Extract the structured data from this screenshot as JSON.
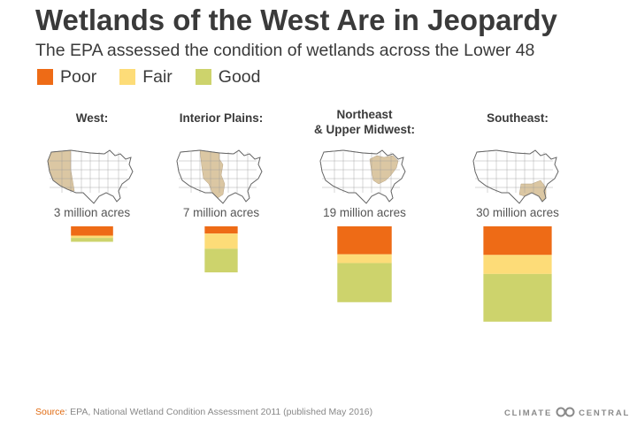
{
  "header": {
    "title": "Wetlands of the West Are in Jeopardy",
    "subtitle": "The EPA assessed the condition of wetlands across the Lower 48"
  },
  "legend": [
    {
      "label": "Poor",
      "color": "#ee6b16"
    },
    {
      "label": "Fair",
      "color": "#fddc78"
    },
    {
      "label": "Good",
      "color": "#cdd36c"
    }
  ],
  "chart_data": {
    "type": "bar",
    "title": "Wetlands of the West Are in Jeopardy",
    "subtitle": "The EPA assessed the condition of wetlands across the Lower 48",
    "value_unit": "million acres",
    "stack_order": [
      "Poor",
      "Fair",
      "Good"
    ],
    "series_colors": {
      "Poor": "#ee6b16",
      "Fair": "#fddc78",
      "Good": "#cdd36c"
    },
    "regions": [
      {
        "name": "West:",
        "name_lines": [
          "West:"
        ],
        "total_label": "3 million acres",
        "total": 3,
        "values": {
          "Poor": 1.8,
          "Fair": 0.45,
          "Good": 0.75
        },
        "map_highlight": "west"
      },
      {
        "name": "Interior Plains:",
        "name_lines": [
          "Interior Plains:"
        ],
        "total_label": "7 million acres",
        "total": 7,
        "values": {
          "Poor": 1.1,
          "Fair": 2.3,
          "Good": 3.6
        },
        "map_highlight": "plains"
      },
      {
        "name": "Northeast & Upper Midwest:",
        "name_lines": [
          "Northeast",
          "& Upper Midwest:"
        ],
        "total_label": "19 million acres",
        "total": 19,
        "values": {
          "Poor": 7.0,
          "Fair": 2.2,
          "Good": 9.8
        },
        "map_highlight": "northeast"
      },
      {
        "name": "Southeast:",
        "name_lines": [
          "Southeast:"
        ],
        "total_label": "30 million acres",
        "total": 30,
        "values": {
          "Poor": 9.0,
          "Fair": 6.0,
          "Good": 15.0
        },
        "map_highlight": "southeast"
      }
    ]
  },
  "footer": {
    "source_label": "Source",
    "source_text": ": EPA, National Wetland Condition Assessment 2011 (published May 2016)",
    "brand_left": "CLIMATE",
    "brand_right": "CENTRAL"
  }
}
